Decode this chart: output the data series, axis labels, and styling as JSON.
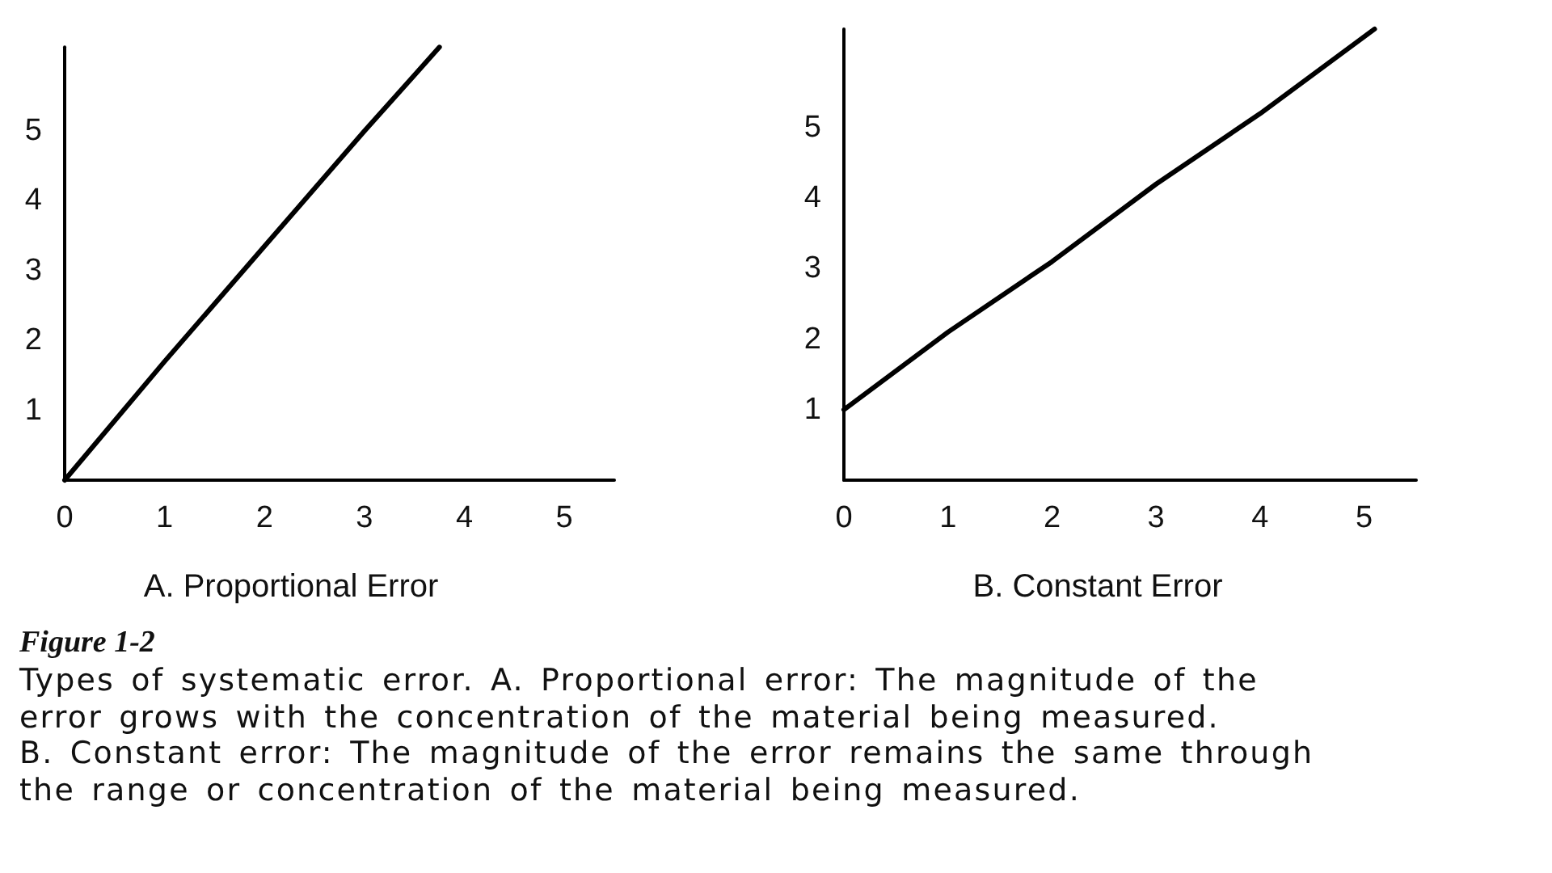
{
  "chart_data": [
    {
      "type": "line",
      "xlabel": "A. Proportional Error",
      "x": [
        0,
        1,
        2,
        3,
        3.75
      ],
      "values": [
        0,
        1.7,
        3.35,
        5.0,
        6.2
      ],
      "color": "#000000",
      "xlim": [
        0,
        5.5
      ],
      "ylim": [
        0,
        6.2
      ],
      "xticks": [
        0,
        1,
        2,
        3,
        4,
        5
      ],
      "yticks": [
        1,
        2,
        3,
        4,
        5
      ],
      "marker": "none",
      "line_style": "solid"
    },
    {
      "type": "line",
      "xlabel": "B. Constant Error",
      "x": [
        0,
        1,
        2,
        3,
        4,
        5.1
      ],
      "values": [
        1,
        2.1,
        3.1,
        4.2,
        5.2,
        6.4
      ],
      "color": "#000000",
      "xlim": [
        0,
        5.5
      ],
      "ylim": [
        0,
        6.4
      ],
      "xticks": [
        0,
        1,
        2,
        3,
        4,
        5
      ],
      "yticks": [
        1,
        2,
        3,
        4,
        5
      ],
      "marker": "none",
      "line_style": "solid"
    },
    {
      "type": "other",
      "title": "Figure 1-2",
      "annotations": [
        "Types of systematic error. A. Proportional error: The magnitude of the error grows with the concentration of the material being measured.",
        "B. Constant error: The magnitude of the error remains the same through the range or concentration of the material being measured."
      ]
    }
  ]
}
